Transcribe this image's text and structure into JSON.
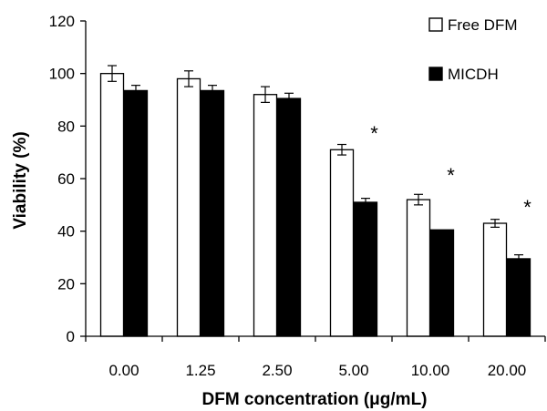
{
  "chart_data": {
    "type": "bar",
    "title": "",
    "xlabel": "DFM concentration (μg/mL)",
    "ylabel": "Viability (%)",
    "categories": [
      "0.00",
      "1.25",
      "2.50",
      "5.00",
      "10.00",
      "20.00"
    ],
    "ylim": [
      0,
      120
    ],
    "yticks": [
      0,
      20,
      40,
      60,
      80,
      100,
      120
    ],
    "grid": false,
    "legend_position": "top-right",
    "series": [
      {
        "name": "Free DFM",
        "color": "#ffffff",
        "stroke": "#000000",
        "values": [
          100,
          98,
          92,
          71,
          52,
          43
        ],
        "errors": [
          3,
          3,
          3,
          2,
          2,
          1.5
        ]
      },
      {
        "name": "MICDH",
        "color": "#000000",
        "stroke": "#000000",
        "values": [
          93.5,
          93.5,
          90.5,
          51,
          40.5,
          29.5
        ],
        "errors": [
          2,
          2,
          2,
          1.5,
          0,
          1.5
        ]
      }
    ],
    "annotations": [
      {
        "category": "5.00",
        "text": "*",
        "y": 78
      },
      {
        "category": "10.00",
        "text": "*",
        "y": 62
      },
      {
        "category": "20.00",
        "text": "*",
        "y": 50
      }
    ]
  }
}
